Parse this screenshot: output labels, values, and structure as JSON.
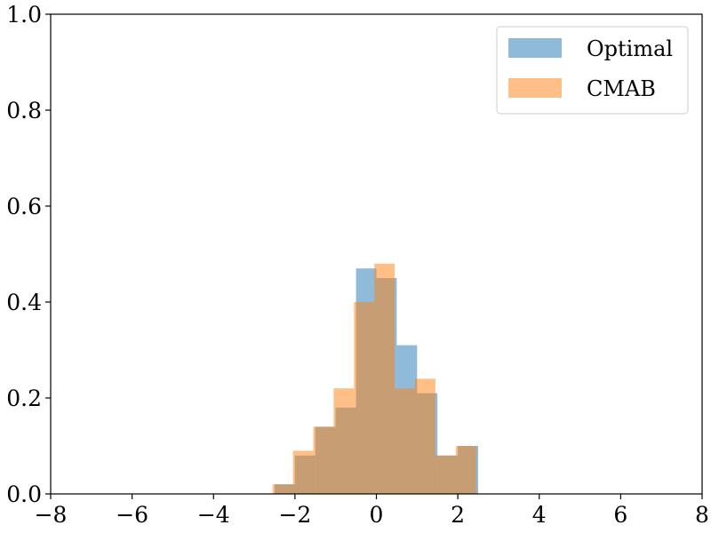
{
  "chart_data": {
    "type": "bar",
    "subtype": "histogram-overlay",
    "title": "",
    "xlabel": "",
    "ylabel": "",
    "xlim": [
      -8,
      8
    ],
    "ylim": [
      0,
      1.0
    ],
    "x_ticks": [
      -8,
      -6,
      -4,
      -2,
      0,
      2,
      4,
      6,
      8
    ],
    "x_tick_labels": [
      "−8",
      "−6",
      "−4",
      "−2",
      "0",
      "2",
      "4",
      "6",
      "8"
    ],
    "y_ticks": [
      0.0,
      0.2,
      0.4,
      0.6,
      0.8,
      1.0
    ],
    "y_tick_labels": [
      "0.0",
      "0.2",
      "0.4",
      "0.6",
      "0.8",
      "1.0"
    ],
    "grid": false,
    "legend_position": "top-right",
    "series": [
      {
        "name": "Optimal",
        "color": "#1f77b4",
        "bins": [
          [
            -2.5,
            -2.0,
            0.02
          ],
          [
            -2.0,
            -1.5,
            0.08
          ],
          [
            -1.5,
            -1.0,
            0.14
          ],
          [
            -1.0,
            -0.5,
            0.18
          ],
          [
            -0.5,
            0.0,
            0.47
          ],
          [
            0.0,
            0.5,
            0.45
          ],
          [
            0.5,
            1.0,
            0.31
          ],
          [
            1.0,
            1.5,
            0.21
          ],
          [
            1.5,
            2.0,
            0.08
          ],
          [
            2.0,
            2.5,
            0.1
          ]
        ]
      },
      {
        "name": "CMAB",
        "color": "#ff7f0e",
        "bins": [
          [
            -2.55,
            -2.05,
            0.02
          ],
          [
            -2.05,
            -1.55,
            0.09
          ],
          [
            -1.55,
            -1.05,
            0.14
          ],
          [
            -1.05,
            -0.55,
            0.22
          ],
          [
            -0.55,
            -0.05,
            0.4
          ],
          [
            -0.05,
            0.45,
            0.48
          ],
          [
            0.45,
            0.95,
            0.22
          ],
          [
            0.95,
            1.45,
            0.24
          ],
          [
            1.45,
            1.95,
            0.08
          ],
          [
            1.95,
            2.45,
            0.1
          ]
        ]
      }
    ]
  }
}
